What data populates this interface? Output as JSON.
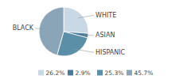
{
  "chart_data": {
    "type": "pie",
    "categories": [
      "WHITE",
      "ASIAN",
      "HISPANIC",
      "BLACK"
    ],
    "values": [
      26.2,
      2.9,
      25.3,
      45.7
    ],
    "value_labels": [
      "26.2%",
      "2.9%",
      "25.3%",
      "45.7%"
    ],
    "colors": [
      "#c8d8e4",
      "#4a7a9b",
      "#5b8fa8",
      "#8aa4b8"
    ],
    "legend": "bottom"
  }
}
